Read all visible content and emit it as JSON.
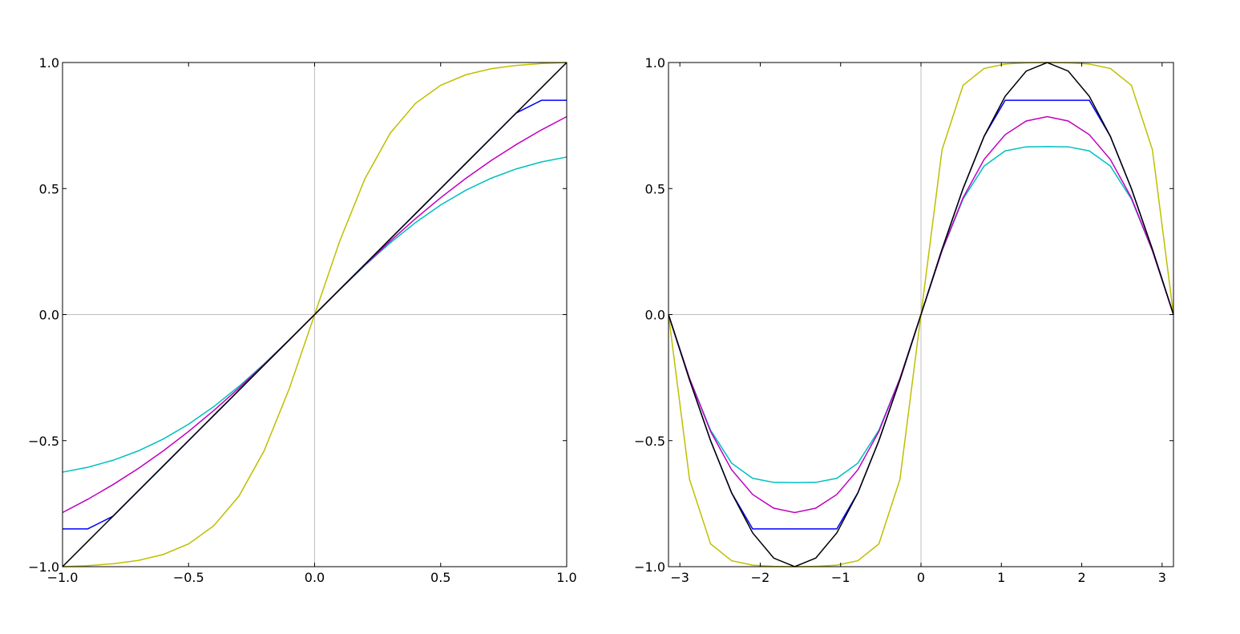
{
  "chart_data": [
    {
      "type": "line",
      "x": [
        -1,
        -0.9,
        -0.8,
        -0.7,
        -0.6,
        -0.5,
        -0.4,
        -0.3,
        -0.2,
        -0.1,
        0,
        0.1,
        0.2,
        0.3,
        0.4,
        0.5,
        0.6,
        0.7,
        0.8,
        0.9,
        1
      ],
      "xlim": [
        -1,
        1
      ],
      "ylim": [
        -1,
        1
      ],
      "xticks": [
        {
          "value": -1,
          "label": "−1.0"
        },
        {
          "value": -0.5,
          "label": "−0.5"
        },
        {
          "value": 0,
          "label": "0.0"
        },
        0.5,
        {
          "value": 1,
          "label": "1.0"
        }
      ],
      "yticks": [
        {
          "value": -1,
          "label": "−1.0"
        },
        {
          "value": -0.5,
          "label": "−0.5"
        },
        {
          "value": 0,
          "label": "0.0"
        },
        0.5,
        {
          "value": 1,
          "label": "1.0"
        }
      ],
      "zero_lines": true,
      "series": [
        {
          "color": "#0000ff",
          "values": [
            -0.85,
            -0.85,
            -0.8,
            -0.7,
            -0.6,
            -0.5,
            -0.4,
            -0.3,
            -0.2,
            -0.1,
            0,
            0.1,
            0.2,
            0.3,
            0.4,
            0.5,
            0.6,
            0.7,
            0.8,
            0.85,
            0.85
          ]
        },
        {
          "color": "#00bfbf",
          "values": [
            -0.625,
            -0.6057,
            -0.578,
            -0.541,
            -0.4934,
            -0.4348,
            -0.365,
            -0.2846,
            -0.1953,
            -0.0994,
            0,
            0.0994,
            0.1953,
            0.2846,
            0.365,
            0.4348,
            0.4934,
            0.541,
            0.578,
            0.6057,
            0.625
          ]
        },
        {
          "color": "#bf00bf",
          "values": [
            -0.7854,
            -0.7328,
            -0.6747,
            -0.6107,
            -0.5404,
            -0.4636,
            -0.3805,
            -0.2915,
            -0.1974,
            -0.0997,
            0,
            0.0997,
            0.1974,
            0.2915,
            0.3805,
            0.4636,
            0.5404,
            0.6107,
            0.6747,
            0.7328,
            0.7854
          ]
        },
        {
          "color": "#bfbf00",
          "values": [
            -1,
            -0.9959,
            -0.9886,
            -0.9753,
            -0.9515,
            -0.9096,
            -0.8378,
            -0.7199,
            -0.5397,
            -0.2927,
            0,
            0.2927,
            0.5397,
            0.7199,
            0.8378,
            0.9096,
            0.9515,
            0.9753,
            0.9886,
            0.9959,
            1
          ]
        },
        {
          "color": "#000000",
          "values": [
            -1,
            -0.9,
            -0.8,
            -0.7,
            -0.6,
            -0.5,
            -0.4,
            -0.3,
            -0.2,
            -0.1,
            0,
            0.1,
            0.2,
            0.3,
            0.4,
            0.5,
            0.6,
            0.7,
            0.8,
            0.9,
            1
          ]
        }
      ]
    },
    {
      "type": "line",
      "x": [
        -3.1416,
        -2.8798,
        -2.618,
        -2.3562,
        -2.0944,
        -1.8326,
        -1.5708,
        -1.309,
        -1.0472,
        -0.7854,
        -0.5236,
        -0.2618,
        0,
        0.2618,
        0.5236,
        0.7854,
        1.0472,
        1.309,
        1.5708,
        1.8326,
        2.0944,
        2.3562,
        2.618,
        2.8798,
        3.1416
      ],
      "xlim": [
        -3.1416,
        3.1416
      ],
      "ylim": [
        -1,
        1
      ],
      "xticks": [
        {
          "value": -3,
          "label": "−3"
        },
        {
          "value": -2,
          "label": "−2"
        },
        {
          "value": -1,
          "label": "−1"
        },
        0,
        1,
        2,
        3
      ],
      "yticks": [
        {
          "value": -1,
          "label": "−1.0"
        },
        {
          "value": -0.5,
          "label": "−0.5"
        },
        {
          "value": 0,
          "label": "0.0"
        },
        0.5,
        {
          "value": 1,
          "label": "1.0"
        }
      ],
      "zero_lines": true,
      "series": [
        {
          "color": "#0000ff",
          "values": [
            0,
            -0.2588,
            -0.5,
            -0.7071,
            -0.85,
            -0.85,
            -0.85,
            -0.85,
            -0.85,
            -0.7071,
            -0.5,
            -0.2588,
            0,
            0.2588,
            0.5,
            0.7071,
            0.85,
            0.85,
            0.85,
            0.85,
            0.85,
            0.7071,
            0.5,
            0.2588,
            0
          ]
        },
        {
          "color": "#00bfbf",
          "values": [
            0,
            -0.253,
            -0.4583,
            -0.5893,
            -0.6495,
            -0.6655,
            -0.6667,
            -0.6655,
            -0.6495,
            -0.5893,
            -0.4583,
            -0.253,
            0,
            0.253,
            0.4583,
            0.5893,
            0.6495,
            0.6655,
            0.6667,
            0.6655,
            0.6495,
            0.5893,
            0.4583,
            0.253,
            0
          ]
        },
        {
          "color": "#bf00bf",
          "values": [
            0,
            -0.2533,
            -0.4636,
            -0.6155,
            -0.7137,
            -0.7679,
            -0.7854,
            -0.7679,
            -0.7137,
            -0.6155,
            -0.4636,
            -0.2533,
            0,
            0.2533,
            0.4636,
            0.6155,
            0.7137,
            0.7679,
            0.7854,
            0.7679,
            0.7137,
            0.6155,
            0.4636,
            0.2533,
            0
          ]
        },
        {
          "color": "#bfbf00",
          "values": [
            0,
            -0.6536,
            -0.9096,
            -0.9764,
            -0.9939,
            -0.9989,
            -1,
            -0.9989,
            -0.9939,
            -0.9764,
            -0.9096,
            -0.6536,
            0,
            0.6536,
            0.9096,
            0.9764,
            0.9939,
            0.9989,
            1,
            0.9989,
            0.9939,
            0.9764,
            0.9096,
            0.6536,
            0
          ]
        },
        {
          "color": "#000000",
          "values": [
            0,
            -0.2588,
            -0.5,
            -0.7071,
            -0.866,
            -0.9659,
            -1,
            -0.9659,
            -0.866,
            -0.7071,
            -0.5,
            -0.2588,
            0,
            0.2588,
            0.5,
            0.7071,
            0.866,
            0.9659,
            1,
            0.9659,
            0.866,
            0.7071,
            0.5,
            0.2588,
            0
          ]
        }
      ]
    }
  ]
}
